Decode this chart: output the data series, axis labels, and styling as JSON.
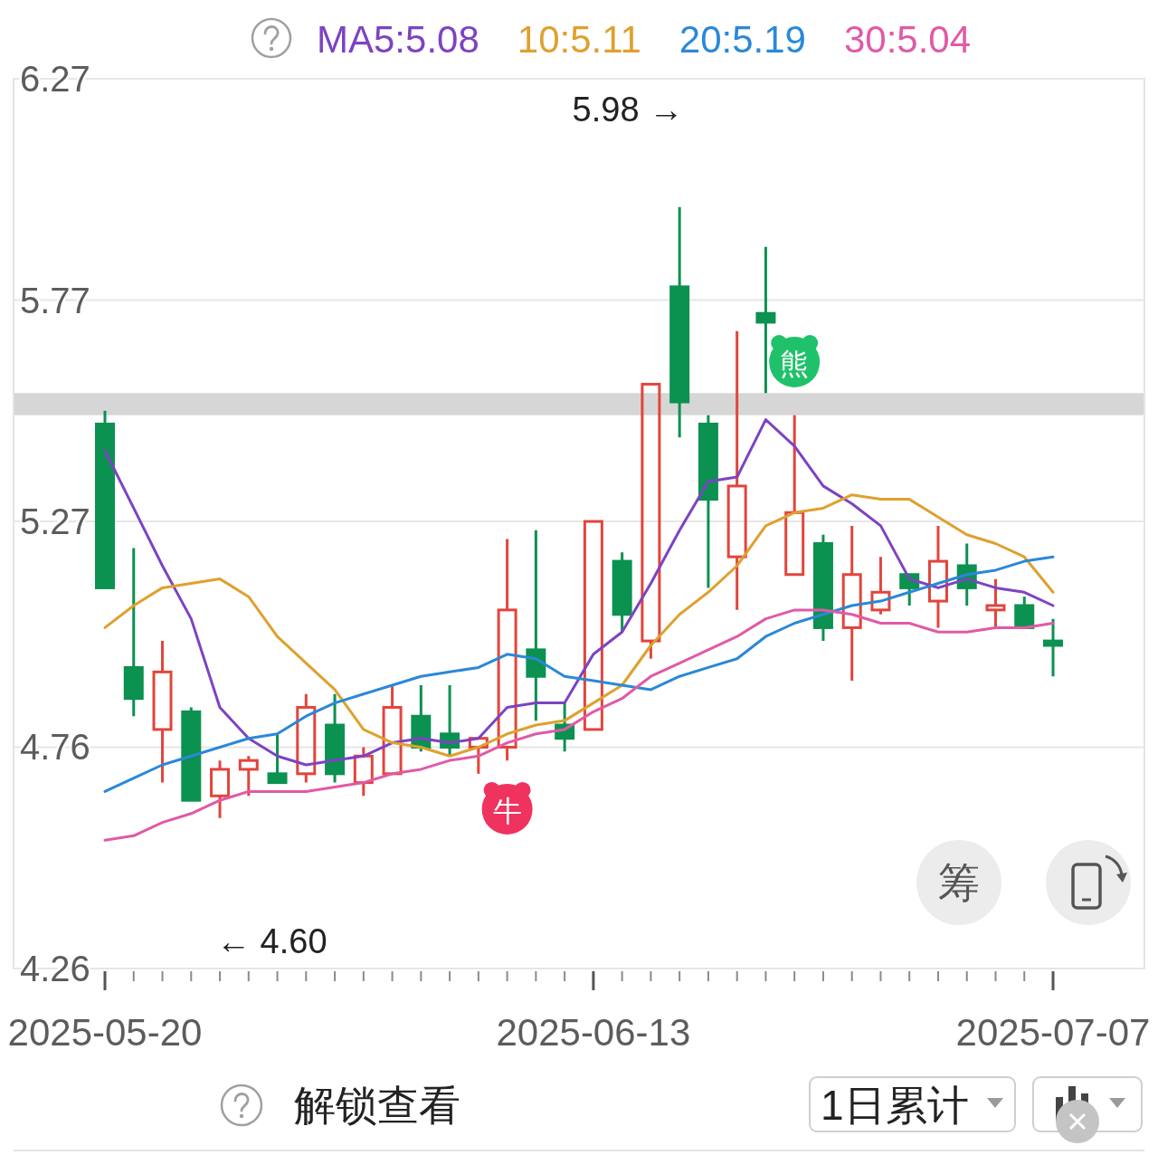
{
  "chart_data": {
    "type": "candlestick",
    "categories": [
      "2025-05-20",
      null,
      null,
      null,
      null,
      null,
      null,
      null,
      null,
      null,
      null,
      null,
      null,
      null,
      null,
      null,
      null,
      "2025-06-13",
      null,
      null,
      null,
      null,
      null,
      null,
      null,
      null,
      null,
      null,
      null,
      null,
      null,
      null,
      null,
      "2025-07-07"
    ],
    "ohlc": [
      [
        5.49,
        5.52,
        5.12,
        5.12
      ],
      [
        4.94,
        5.21,
        4.83,
        4.87
      ],
      [
        4.8,
        5.0,
        4.68,
        4.93
      ],
      [
        4.84,
        4.85,
        4.64,
        4.64
      ],
      [
        4.65,
        4.73,
        4.6,
        4.71
      ],
      [
        4.71,
        4.74,
        4.65,
        4.73
      ],
      [
        4.7,
        4.79,
        4.68,
        4.68
      ],
      [
        4.7,
        4.88,
        4.68,
        4.85
      ],
      [
        4.81,
        4.88,
        4.68,
        4.7
      ],
      [
        4.68,
        4.76,
        4.65,
        4.74
      ],
      [
        4.7,
        4.9,
        4.7,
        4.85
      ],
      [
        4.83,
        4.9,
        4.75,
        4.76
      ],
      [
        4.79,
        4.9,
        4.74,
        4.76
      ],
      [
        4.76,
        4.78,
        4.7,
        4.78
      ],
      [
        4.76,
        5.23,
        4.73,
        5.07
      ],
      [
        4.98,
        5.25,
        4.82,
        4.92
      ],
      [
        4.81,
        4.86,
        4.75,
        4.78
      ],
      [
        4.8,
        5.27,
        4.8,
        5.27
      ],
      [
        5.18,
        5.2,
        5.02,
        5.06
      ],
      [
        5.0,
        5.58,
        4.96,
        5.58
      ],
      [
        5.8,
        5.98,
        5.46,
        5.54
      ],
      [
        5.49,
        5.51,
        5.12,
        5.32
      ],
      [
        5.19,
        5.7,
        5.07,
        5.35
      ],
      [
        5.74,
        5.89,
        5.56,
        5.72
      ],
      [
        5.15,
        5.51,
        5.15,
        5.29
      ],
      [
        5.22,
        5.24,
        5.0,
        5.03
      ],
      [
        5.03,
        5.26,
        4.91,
        5.15
      ],
      [
        5.07,
        5.19,
        5.06,
        5.11
      ],
      [
        5.15,
        5.15,
        5.08,
        5.12
      ],
      [
        5.09,
        5.26,
        5.03,
        5.18
      ],
      [
        5.17,
        5.22,
        5.08,
        5.12
      ],
      [
        5.07,
        5.14,
        5.03,
        5.08
      ],
      [
        5.08,
        5.1,
        5.03,
        5.03
      ],
      [
        5.0,
        5.05,
        4.92,
        4.99
      ]
    ],
    "colors": [
      "#0b9150",
      "#0b9150",
      "#e2453c",
      "#0b9150",
      "#e2453c",
      "#e2453c",
      "#0b9150",
      "#e2453c",
      "#0b9150",
      "#e2453c",
      "#e2453c",
      "#0b9150",
      "#0b9150",
      "#e2453c",
      "#e2453c",
      "#0b9150",
      "#0b9150",
      "#e2453c",
      "#0b9150",
      "#e2453c",
      "#0b9150",
      "#0b9150",
      "#e2453c",
      "#0b9150",
      "#e2453c",
      "#0b9150",
      "#e2453c",
      "#e2453c",
      "#0b9150",
      "#e2453c",
      "#0b9150",
      "#e2453c",
      "#0b9150",
      "#0b9150"
    ],
    "ylim": [
      4.26,
      6.27
    ],
    "yticks": [
      4.26,
      4.76,
      5.27,
      5.77,
      6.27
    ],
    "grid": "y",
    "legend": "top",
    "series": [
      {
        "name": "MA5:5.08",
        "type": "line",
        "color": "#7d43c2",
        "values": [
          5.43,
          5.3,
          5.17,
          5.05,
          4.85,
          4.78,
          4.74,
          4.72,
          4.73,
          4.74,
          4.77,
          4.78,
          4.77,
          4.78,
          4.85,
          4.86,
          4.86,
          4.97,
          5.02,
          5.13,
          5.25,
          5.36,
          5.37,
          5.5,
          5.44,
          5.35,
          5.31,
          5.26,
          5.14,
          5.12,
          5.14,
          5.12,
          5.11,
          5.08
        ]
      },
      {
        "name": "10:5.11",
        "type": "line",
        "color": "#dea12e",
        "values": [
          5.03,
          5.08,
          5.12,
          5.13,
          5.14,
          5.1,
          5.01,
          4.95,
          4.89,
          4.8,
          4.77,
          4.76,
          4.74,
          4.76,
          4.79,
          4.81,
          4.82,
          4.86,
          4.9,
          4.99,
          5.06,
          5.11,
          5.17,
          5.26,
          5.29,
          5.3,
          5.33,
          5.32,
          5.32,
          5.28,
          5.24,
          5.22,
          5.19,
          5.11
        ]
      },
      {
        "name": "20:5.19",
        "type": "line",
        "color": "#2a88d8",
        "values": [
          4.66,
          4.69,
          4.72,
          4.74,
          4.76,
          4.78,
          4.79,
          4.83,
          4.86,
          4.88,
          4.9,
          4.92,
          4.93,
          4.94,
          4.97,
          4.96,
          4.92,
          4.91,
          4.9,
          4.89,
          4.92,
          4.94,
          4.96,
          5.01,
          5.04,
          5.06,
          5.08,
          5.09,
          5.11,
          5.13,
          5.15,
          5.16,
          5.18,
          5.19
        ]
      },
      {
        "name": "30:5.04",
        "type": "line",
        "color": "#e05aa6",
        "values": [
          4.55,
          4.56,
          4.59,
          4.61,
          4.64,
          4.66,
          4.66,
          4.66,
          4.67,
          4.68,
          4.7,
          4.71,
          4.73,
          4.74,
          4.77,
          4.79,
          4.8,
          4.84,
          4.87,
          4.92,
          4.95,
          4.98,
          5.01,
          5.05,
          5.07,
          5.07,
          5.06,
          5.04,
          5.04,
          5.02,
          5.02,
          5.03,
          5.03,
          5.04
        ]
      },
      {
        "type": "scatter",
        "color": "#f0325e",
        "values": [
          null,
          null,
          null,
          null,
          null,
          null,
          null,
          null,
          null,
          null,
          null,
          null,
          null,
          null,
          4.62,
          null,
          null,
          null,
          null,
          null,
          null,
          null,
          null,
          null,
          null,
          null,
          null,
          null,
          null,
          null,
          null,
          null,
          null,
          null
        ],
        "value_labels": [
          null,
          null,
          null,
          null,
          null,
          null,
          null,
          null,
          null,
          null,
          null,
          null,
          null,
          null,
          "牛",
          null,
          null,
          null,
          null,
          null,
          null,
          null,
          null,
          null,
          null,
          null,
          null,
          null,
          null,
          null,
          null,
          null,
          null,
          null
        ]
      },
      {
        "type": "scatter",
        "color": "#1fc26a",
        "values": [
          null,
          null,
          null,
          null,
          null,
          null,
          null,
          null,
          null,
          null,
          null,
          null,
          null,
          null,
          null,
          null,
          null,
          null,
          null,
          null,
          null,
          null,
          null,
          null,
          5.63,
          null,
          null,
          null,
          null,
          null,
          null,
          null,
          null,
          null
        ],
        "value_labels": [
          null,
          null,
          null,
          null,
          null,
          null,
          null,
          null,
          null,
          null,
          null,
          null,
          null,
          null,
          null,
          null,
          null,
          null,
          null,
          null,
          null,
          null,
          null,
          null,
          "熊",
          null,
          null,
          null,
          null,
          null,
          null,
          null,
          null,
          null
        ]
      }
    ],
    "bands": [
      {
        "axis": "y",
        "from": 5.51,
        "to": 5.56,
        "color": "#d6d6d6"
      }
    ],
    "annotations": [
      "5.98 →",
      "← 4.60",
      "筹",
      "解锁查看",
      "1日累计"
    ]
  }
}
